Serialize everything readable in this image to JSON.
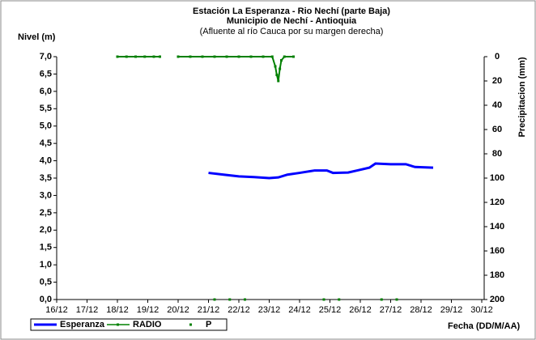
{
  "chart_data": {
    "type": "line",
    "title": "Estación La Esperanza - Rio Nechí  (parte Baja)",
    "subtitle": "Municipio de Nechí - Antioquia",
    "note": "(Afluente al río Cauca por su margen derecha)",
    "y_label": "Nivel (m)",
    "y2_label": "Precipitacion (mm)",
    "x_label": "Fecha (DD/M/AA)",
    "xlim": [
      16,
      30
    ],
    "xticks": [
      {
        "value": 16,
        "label": "16/12"
      },
      {
        "value": 17,
        "label": "17/12"
      },
      {
        "value": 18,
        "label": "18/12"
      },
      {
        "value": 19,
        "label": "19/12"
      },
      {
        "value": 20,
        "label": "20/12"
      },
      {
        "value": 21,
        "label": "21/12"
      },
      {
        "value": 22,
        "label": "22/12"
      },
      {
        "value": 23,
        "label": "23/12"
      },
      {
        "value": 24,
        "label": "24/12"
      },
      {
        "value": 25,
        "label": "25/12"
      },
      {
        "value": 26,
        "label": "26/12"
      },
      {
        "value": 27,
        "label": "27/12"
      },
      {
        "value": 28,
        "label": "28/12"
      },
      {
        "value": 29,
        "label": "29/12"
      },
      {
        "value": 30,
        "label": "30/12"
      }
    ],
    "ylim": [
      0,
      7
    ],
    "yticks": [
      {
        "value": 0,
        "label": "0,0"
      },
      {
        "value": 0.5,
        "label": "0,5"
      },
      {
        "value": 1,
        "label": "1,0"
      },
      {
        "value": 1.5,
        "label": "1,5"
      },
      {
        "value": 2,
        "label": "2,0"
      },
      {
        "value": 2.5,
        "label": "2,5"
      },
      {
        "value": 3,
        "label": "3,0"
      },
      {
        "value": 3.5,
        "label": "3,5"
      },
      {
        "value": 4,
        "label": "4,0"
      },
      {
        "value": 4.5,
        "label": "4,5"
      },
      {
        "value": 5,
        "label": "5,0"
      },
      {
        "value": 5.5,
        "label": "5,5"
      },
      {
        "value": 6,
        "label": "6,0"
      },
      {
        "value": 6.5,
        "label": "6,5"
      },
      {
        "value": 7,
        "label": "7,0"
      }
    ],
    "y2lim": [
      200,
      0
    ],
    "y2ticks": [
      0,
      20,
      40,
      60,
      80,
      100,
      120,
      140,
      160,
      180,
      200
    ],
    "series": [
      {
        "name": "Esperanza",
        "color": "#0000ff",
        "mode": "line",
        "x": [
          21.0,
          21.5,
          22.0,
          22.5,
          23.0,
          23.3,
          23.6,
          24.0,
          24.5,
          24.9,
          25.1,
          25.6,
          25.9,
          26.3,
          26.5,
          27.0,
          27.5,
          27.8,
          28.4
        ],
        "values": [
          3.65,
          3.6,
          3.55,
          3.53,
          3.5,
          3.52,
          3.6,
          3.65,
          3.72,
          3.72,
          3.65,
          3.66,
          3.72,
          3.8,
          3.92,
          3.9,
          3.9,
          3.82,
          3.8
        ]
      },
      {
        "name": "RADIO",
        "color": "#008000",
        "mode": "line-markers",
        "axis": "y2",
        "x": [
          18.0,
          18.3,
          18.6,
          18.9,
          19.2,
          19.4,
          19.7,
          20.0,
          20.4,
          20.8,
          21.2,
          21.6,
          22.0,
          22.4,
          22.8,
          23.1,
          23.2,
          23.25,
          23.3,
          23.35,
          23.4,
          23.5,
          23.8
        ],
        "values": [
          0,
          0,
          0,
          0,
          0,
          0,
          null,
          0,
          0,
          0,
          0,
          0,
          0,
          0,
          0,
          0,
          8,
          15,
          20,
          10,
          3,
          0,
          0
        ]
      },
      {
        "name": "P",
        "color": "#008000",
        "mode": "points",
        "x": [
          21.2,
          21.7,
          22.2,
          24.8,
          25.3,
          26.7,
          27.2
        ],
        "values": [
          0,
          0,
          0,
          0,
          0,
          0,
          0
        ]
      }
    ]
  }
}
